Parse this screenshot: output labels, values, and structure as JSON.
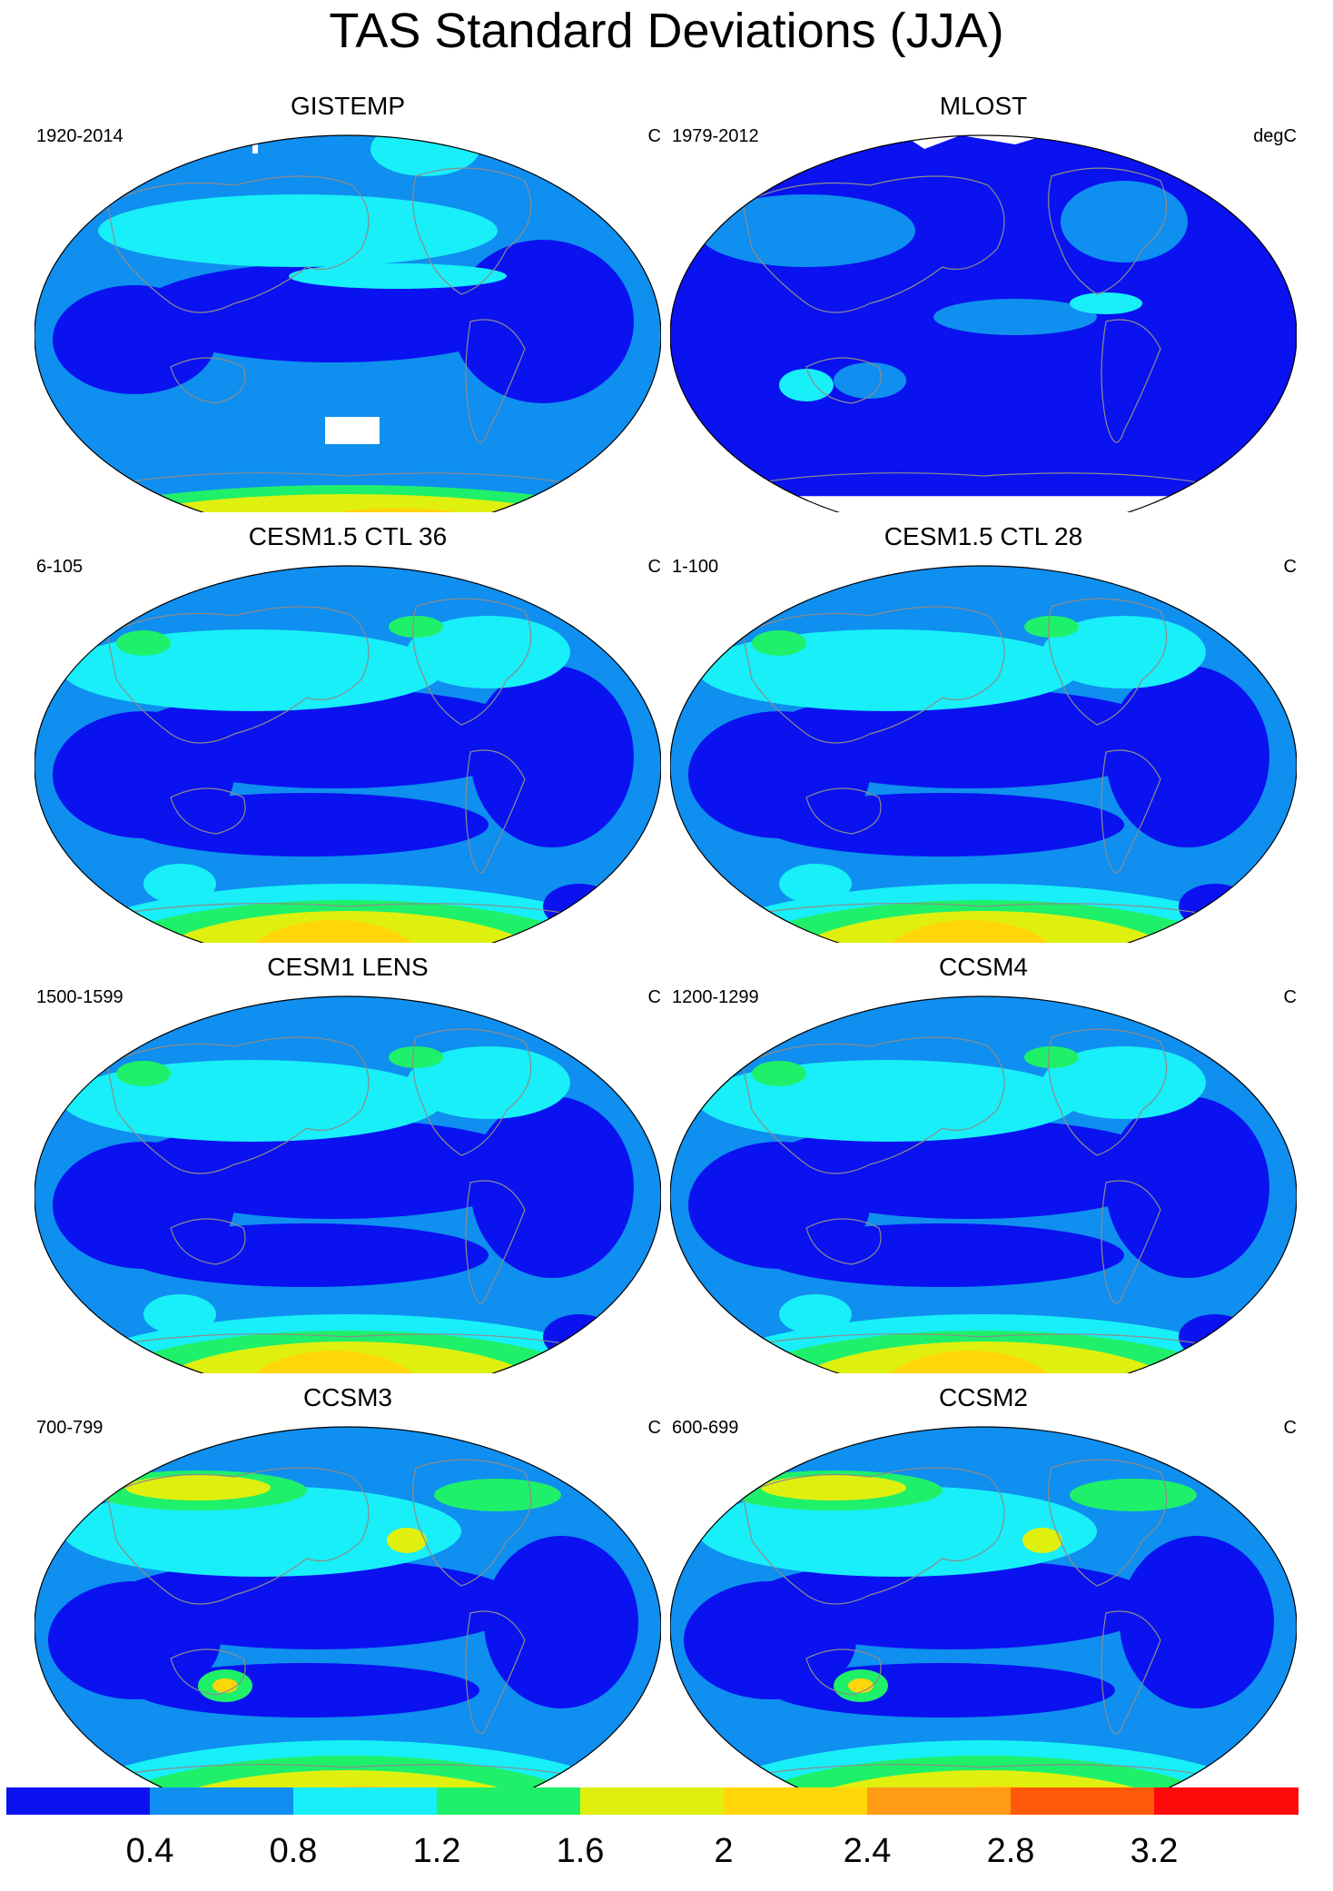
{
  "title": "TAS Standard Deviations (JJA)",
  "colors": {
    "ocean_fill": "#0f8fef",
    "coast": "#8c8c8c",
    "map_border": "#000000"
  },
  "colorbar": {
    "colors": [
      "#0a12f0",
      "#0f8fef",
      "#18eff8",
      "#1ff06a",
      "#dff00f",
      "#ffd60a",
      "#ff9c14",
      "#ff5a0a",
      "#ff0a0a"
    ],
    "labels": [
      "0.4",
      "0.8",
      "1.2",
      "1.6",
      "2",
      "2.4",
      "2.8",
      "3.2"
    ]
  },
  "panels": [
    {
      "title": "GISTEMP",
      "left": "1920-2014",
      "right": "C",
      "style": "obs_a"
    },
    {
      "title": "MLOST",
      "left": "1979-2012",
      "right": "degC",
      "style": "obs_b"
    },
    {
      "title": "CESM1.5 CTL 36",
      "left": "6-105",
      "right": "C",
      "style": "model"
    },
    {
      "title": "CESM1.5 CTL 28",
      "left": "1-100",
      "right": "C",
      "style": "model"
    },
    {
      "title": "CESM1 LENS",
      "left": "1500-1599",
      "right": "C",
      "style": "model"
    },
    {
      "title": "CCSM4",
      "left": "1200-1299",
      "right": "C",
      "style": "model"
    },
    {
      "title": "CCSM3",
      "left": "700-799",
      "right": "C",
      "style": "model_warm"
    },
    {
      "title": "CCSM2",
      "left": "600-699",
      "right": "C",
      "style": "model_warm"
    }
  ]
}
